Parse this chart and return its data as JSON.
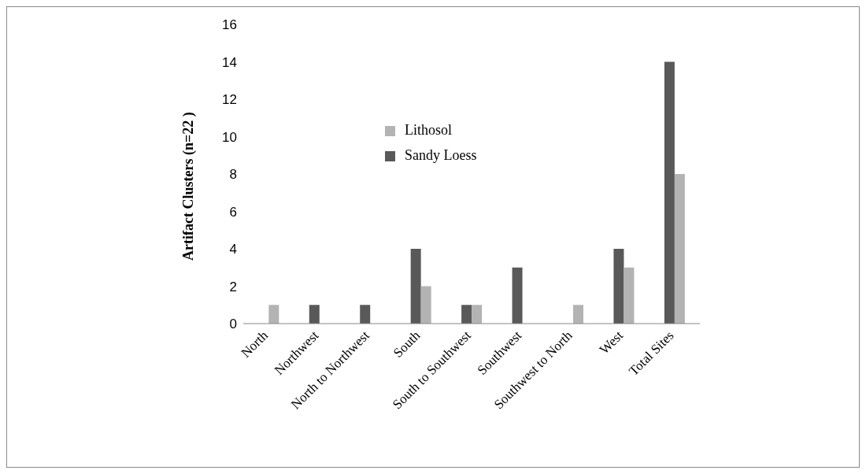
{
  "chart_data": {
    "type": "bar",
    "ylabel": "Artifact Clusters (n=22 )",
    "categories": [
      "North",
      "Northwest",
      "North to Northwest",
      "South",
      "South to Southwest",
      "Southwest",
      "Southwest to North",
      "West",
      "Total Sites"
    ],
    "series": [
      {
        "name": "Sandy Loess",
        "color": "#595959",
        "values": [
          0,
          1,
          1,
          4,
          1,
          3,
          0,
          4,
          14
        ]
      },
      {
        "name": "Lithosol",
        "color": "#b3b3b3",
        "values": [
          1,
          0,
          0,
          2,
          1,
          0,
          1,
          3,
          8
        ]
      }
    ],
    "ylim": [
      0,
      16
    ],
    "yticks": [
      0,
      2,
      4,
      6,
      8,
      10,
      12,
      14,
      16
    ],
    "grid": false,
    "legend": "top"
  }
}
